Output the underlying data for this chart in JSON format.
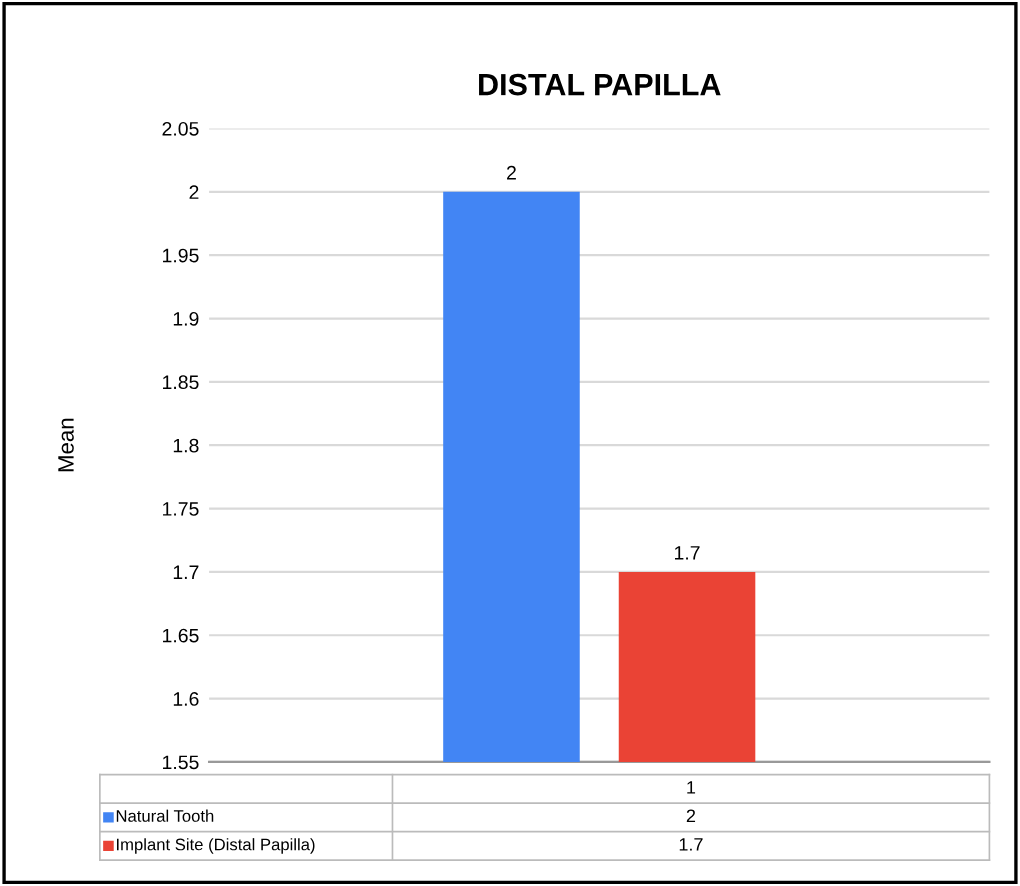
{
  "chart_data": {
    "type": "bar",
    "title": "DISTAL PAPILLA",
    "ylabel": "Mean",
    "categories": [
      "1"
    ],
    "series": [
      {
        "name": "Natural Tooth",
        "color": "#4285f4",
        "values": [
          2
        ]
      },
      {
        "name": "Implant Site (Distal Papilla)",
        "color": "#ea4335",
        "values": [
          1.7
        ]
      }
    ],
    "annotations": [
      "2",
      "1.7"
    ],
    "ylim": [
      1.55,
      2.05
    ],
    "yticks": [
      1.55,
      1.6,
      1.65,
      1.7,
      1.75,
      1.8,
      1.85,
      1.9,
      1.95,
      2,
      2.05
    ],
    "grid": "y",
    "legend": "bottom",
    "data_labels": true
  }
}
